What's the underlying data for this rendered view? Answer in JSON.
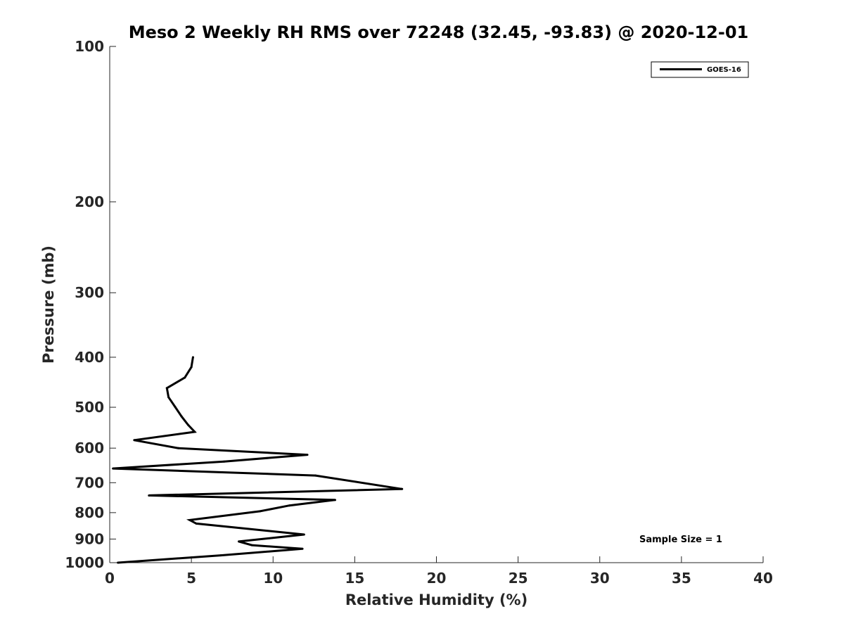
{
  "chart_data": {
    "type": "line",
    "title": "Meso 2 Weekly RH RMS over 72248 (32.45, -93.83) @ 2020-12-01",
    "xlabel": "Relative Humidity (%)",
    "ylabel": "Pressure (mb)",
    "xlim": [
      0,
      40
    ],
    "ylim": [
      100,
      1000
    ],
    "y_scale": "log",
    "y_reversed": true,
    "grid": false,
    "x_ticks": [
      0,
      5,
      10,
      15,
      20,
      25,
      30,
      35,
      40
    ],
    "x_tick_labels": [
      "0",
      "5",
      "10",
      "15",
      "20",
      "25",
      "30",
      "35",
      "40"
    ],
    "y_ticks": [
      100,
      200,
      300,
      400,
      500,
      600,
      700,
      800,
      900,
      1000
    ],
    "y_tick_labels": [
      "100",
      "200",
      "300",
      "400",
      "500",
      "600",
      "700",
      "800",
      "900",
      "1000"
    ],
    "legend_position": "top-right",
    "series": [
      {
        "name": "GOES-16",
        "color": "#000000",
        "points": [
          [
            0.5,
            1000
          ],
          [
            6.8,
            968
          ],
          [
            11.8,
            940
          ],
          [
            8.7,
            925
          ],
          [
            7.9,
            910
          ],
          [
            11.9,
            882
          ],
          [
            5.3,
            840
          ],
          [
            4.9,
            827
          ],
          [
            9.2,
            795
          ],
          [
            11.0,
            775
          ],
          [
            13.8,
            756
          ],
          [
            2.4,
            741
          ],
          [
            17.9,
            720
          ],
          [
            12.6,
            678
          ],
          [
            0.2,
            657
          ],
          [
            7.0,
            637
          ],
          [
            12.1,
            618
          ],
          [
            4.2,
            600
          ],
          [
            1.5,
            579
          ],
          [
            5.2,
            558
          ],
          [
            4.8,
            541
          ],
          [
            4.4,
            521
          ],
          [
            4.0,
            499
          ],
          [
            3.6,
            478
          ],
          [
            3.5,
            459
          ],
          [
            4.6,
            438
          ],
          [
            5.0,
            418
          ],
          [
            5.1,
            400
          ]
        ]
      }
    ],
    "annotations": [
      "Sample Size = 1"
    ]
  }
}
